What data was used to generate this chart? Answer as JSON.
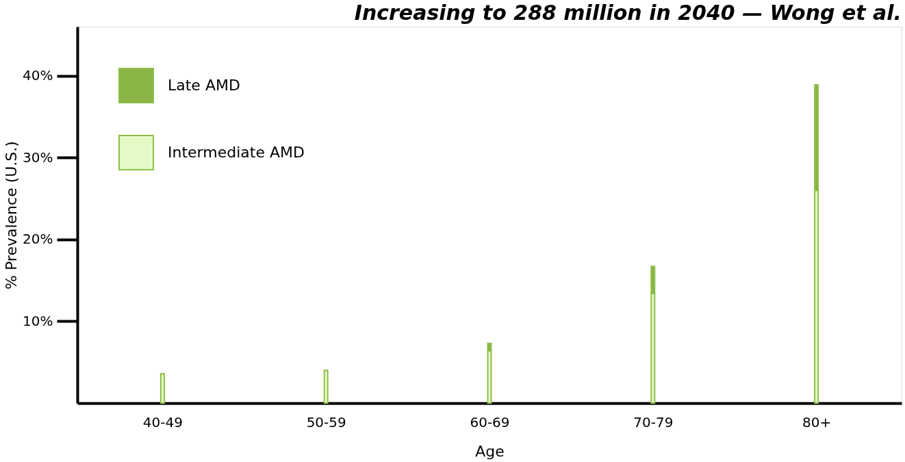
{
  "chart_data": {
    "type": "bar",
    "title": "Increasing to 288 million in 2040 — Wong et al.",
    "xlabel": "Age",
    "ylabel": "% Prevalence (U.S.)",
    "categories": [
      "40-49",
      "50-59",
      "60-69",
      "70-79",
      "80+"
    ],
    "stacked": true,
    "series": [
      {
        "name": "Intermediate AMD",
        "color": "#e6fac8",
        "values": [
          3.6,
          4.0,
          6.4,
          13.4,
          26.0
        ]
      },
      {
        "name": "Late AMD",
        "color": "#8ab446",
        "values": [
          0,
          0,
          0.9,
          3.3,
          12.9
        ]
      }
    ],
    "ylim": [
      0,
      46
    ],
    "yticks": [
      {
        "value": 10,
        "label": "10%"
      },
      {
        "value": 20,
        "label": "20%"
      },
      {
        "value": 30,
        "label": "30%"
      },
      {
        "value": 40,
        "label": "40%"
      }
    ],
    "grid": false,
    "legend": "top left"
  }
}
